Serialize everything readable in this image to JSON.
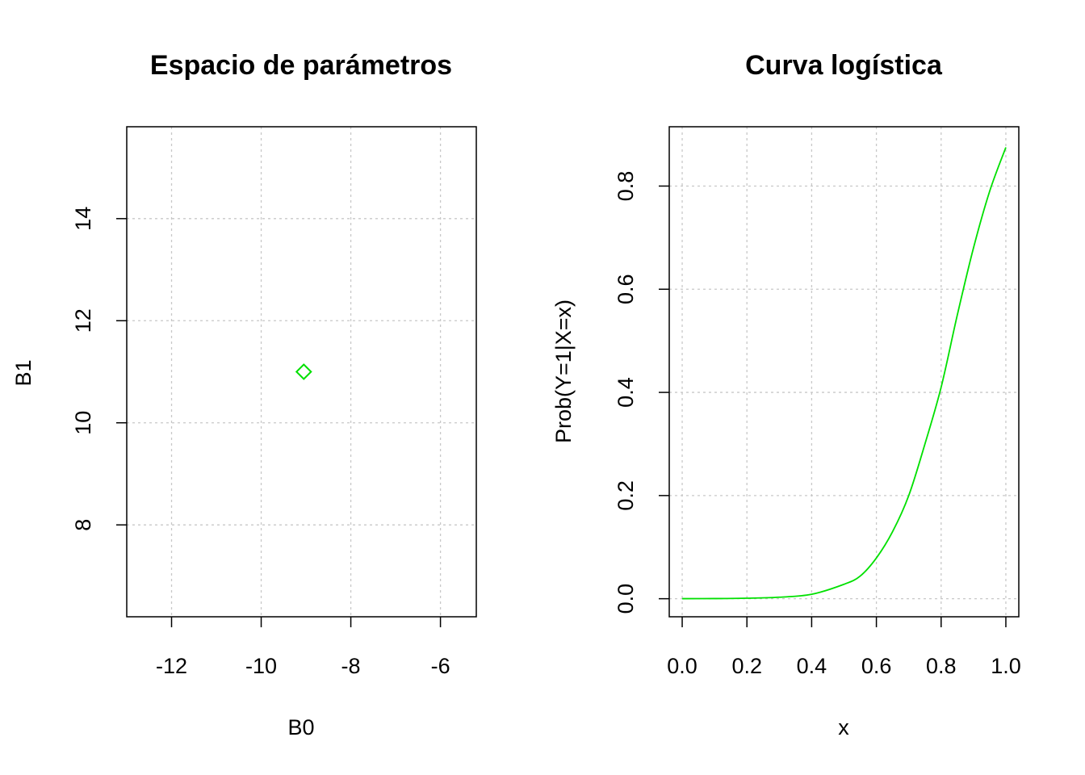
{
  "chart_data": [
    {
      "type": "scatter",
      "title": "Espacio de parámetros",
      "xlabel": "B0",
      "ylabel": "B1",
      "xlim": [
        -13,
        -5.2
      ],
      "ylim": [
        6.2,
        15.8
      ],
      "xticks": [
        -12,
        -10,
        -8,
        -6
      ],
      "yticks": [
        8,
        10,
        12,
        14
      ],
      "xtick_labels": [
        "-12",
        "-10",
        "-8",
        "-6"
      ],
      "ytick_labels": [
        "8",
        "10",
        "12",
        "14"
      ],
      "grid": true,
      "series": [
        {
          "marker": "diamond",
          "color": "#00e000",
          "x": [
            -9.05
          ],
          "y": [
            11.0
          ]
        }
      ]
    },
    {
      "type": "line",
      "title": "Curva logística",
      "xlabel": "x",
      "ylabel": "Prob(Y=1|X=x)",
      "xlim": [
        -0.04,
        1.04
      ],
      "ylim": [
        -0.035,
        0.915
      ],
      "xticks": [
        0.0,
        0.2,
        0.4,
        0.6,
        0.8,
        1.0
      ],
      "yticks": [
        0.0,
        0.2,
        0.4,
        0.6,
        0.8
      ],
      "xtick_labels": [
        "0.0",
        "0.2",
        "0.4",
        "0.6",
        "0.8",
        "1.0"
      ],
      "ytick_labels": [
        "0.0",
        "0.2",
        "0.4",
        "0.6",
        "0.8"
      ],
      "grid": true,
      "series": [
        {
          "color": "#00e000",
          "x": [
            0.0,
            0.1,
            0.2,
            0.3,
            0.4,
            0.5,
            0.55,
            0.6,
            0.65,
            0.7,
            0.75,
            0.8,
            0.85,
            0.9,
            0.95,
            1.0
          ],
          "y": [
            0.0001,
            0.0003,
            0.001,
            0.0029,
            0.0086,
            0.028,
            0.044,
            0.079,
            0.13,
            0.2,
            0.3,
            0.41,
            0.55,
            0.68,
            0.79,
            0.875
          ]
        }
      ]
    }
  ]
}
